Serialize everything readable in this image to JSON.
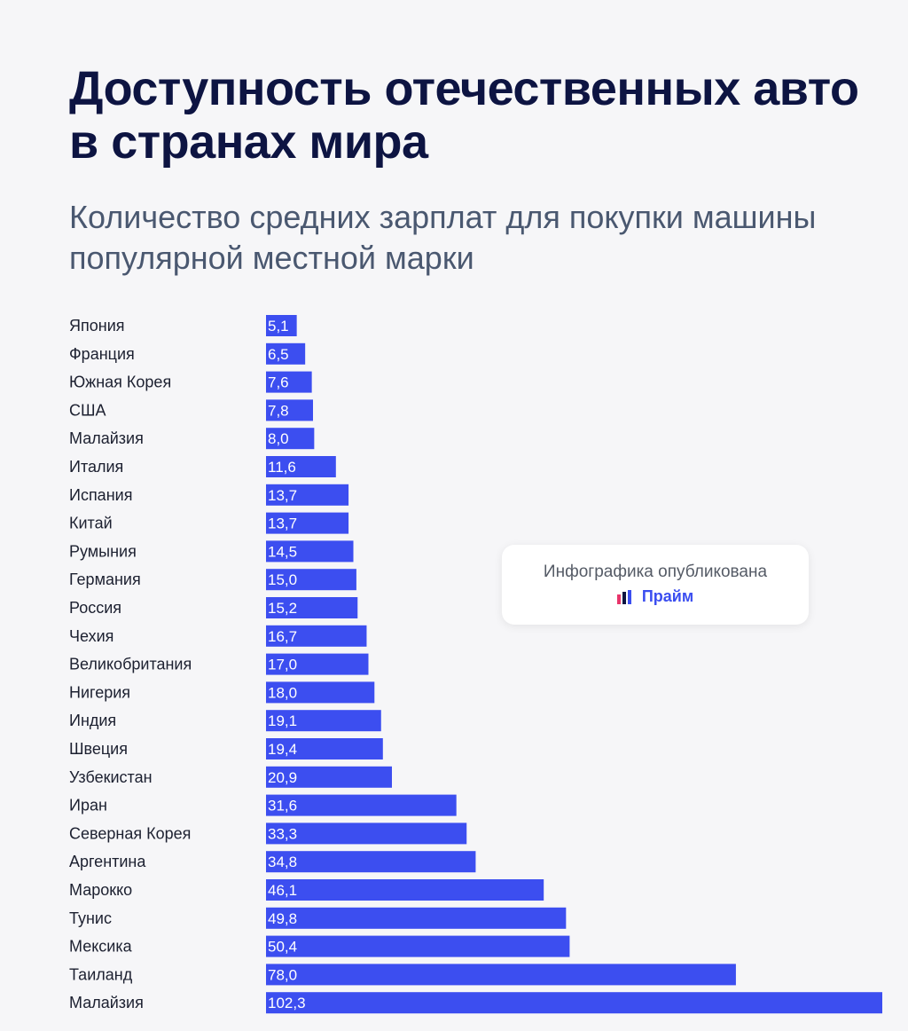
{
  "title": "Доступность отечественных авто в странах мира",
  "subtitle": "Количество средних зарплат для покупки машины популярной местной марки",
  "badge": {
    "text": "Инфографика опубликована",
    "brand": "Прайм"
  },
  "colors": {
    "bar": "#3c4ef0",
    "title": "#0d1442",
    "subtitle": "#4a5870"
  },
  "chart_data": {
    "type": "bar",
    "orientation": "horizontal",
    "title": "Доступность отечественных авто в странах мира",
    "subtitle": "Количество средних зарплат для покупки машины популярной местной марки",
    "xlabel": "",
    "ylabel": "",
    "xlim": [
      0,
      102.3
    ],
    "grid": false,
    "categories": [
      "Япония",
      "Франция",
      "Южная Корея",
      "США",
      "Малайзия",
      "Италия",
      "Испания",
      "Китай",
      "Румыния",
      "Германия",
      "Россия",
      "Чехия",
      "Великобритания",
      "Нигерия",
      "Индия",
      "Швеция",
      "Узбекистан",
      "Иран",
      "Северная Корея",
      "Аргентина",
      "Марокко",
      "Тунис",
      "Мексика",
      "Таиланд",
      "Малайзия"
    ],
    "values": [
      5.1,
      6.5,
      7.6,
      7.8,
      8.0,
      11.6,
      13.7,
      13.7,
      14.5,
      15.0,
      15.2,
      16.7,
      17.0,
      18.0,
      19.1,
      19.4,
      20.9,
      31.6,
      33.3,
      34.8,
      46.1,
      49.8,
      50.4,
      78.0,
      102.3
    ],
    "value_labels": [
      "5,1",
      "6,5",
      "7,6",
      "7,8",
      "8,0",
      "11,6",
      "13,7",
      "13,7",
      "14,5",
      "15,0",
      "15,2",
      "16,7",
      "17,0",
      "18,0",
      "19,1",
      "19,4",
      "20,9",
      "31,6",
      "33,3",
      "34,8",
      "46,1",
      "49,8",
      "50,4",
      "78,0",
      "102,3"
    ]
  }
}
